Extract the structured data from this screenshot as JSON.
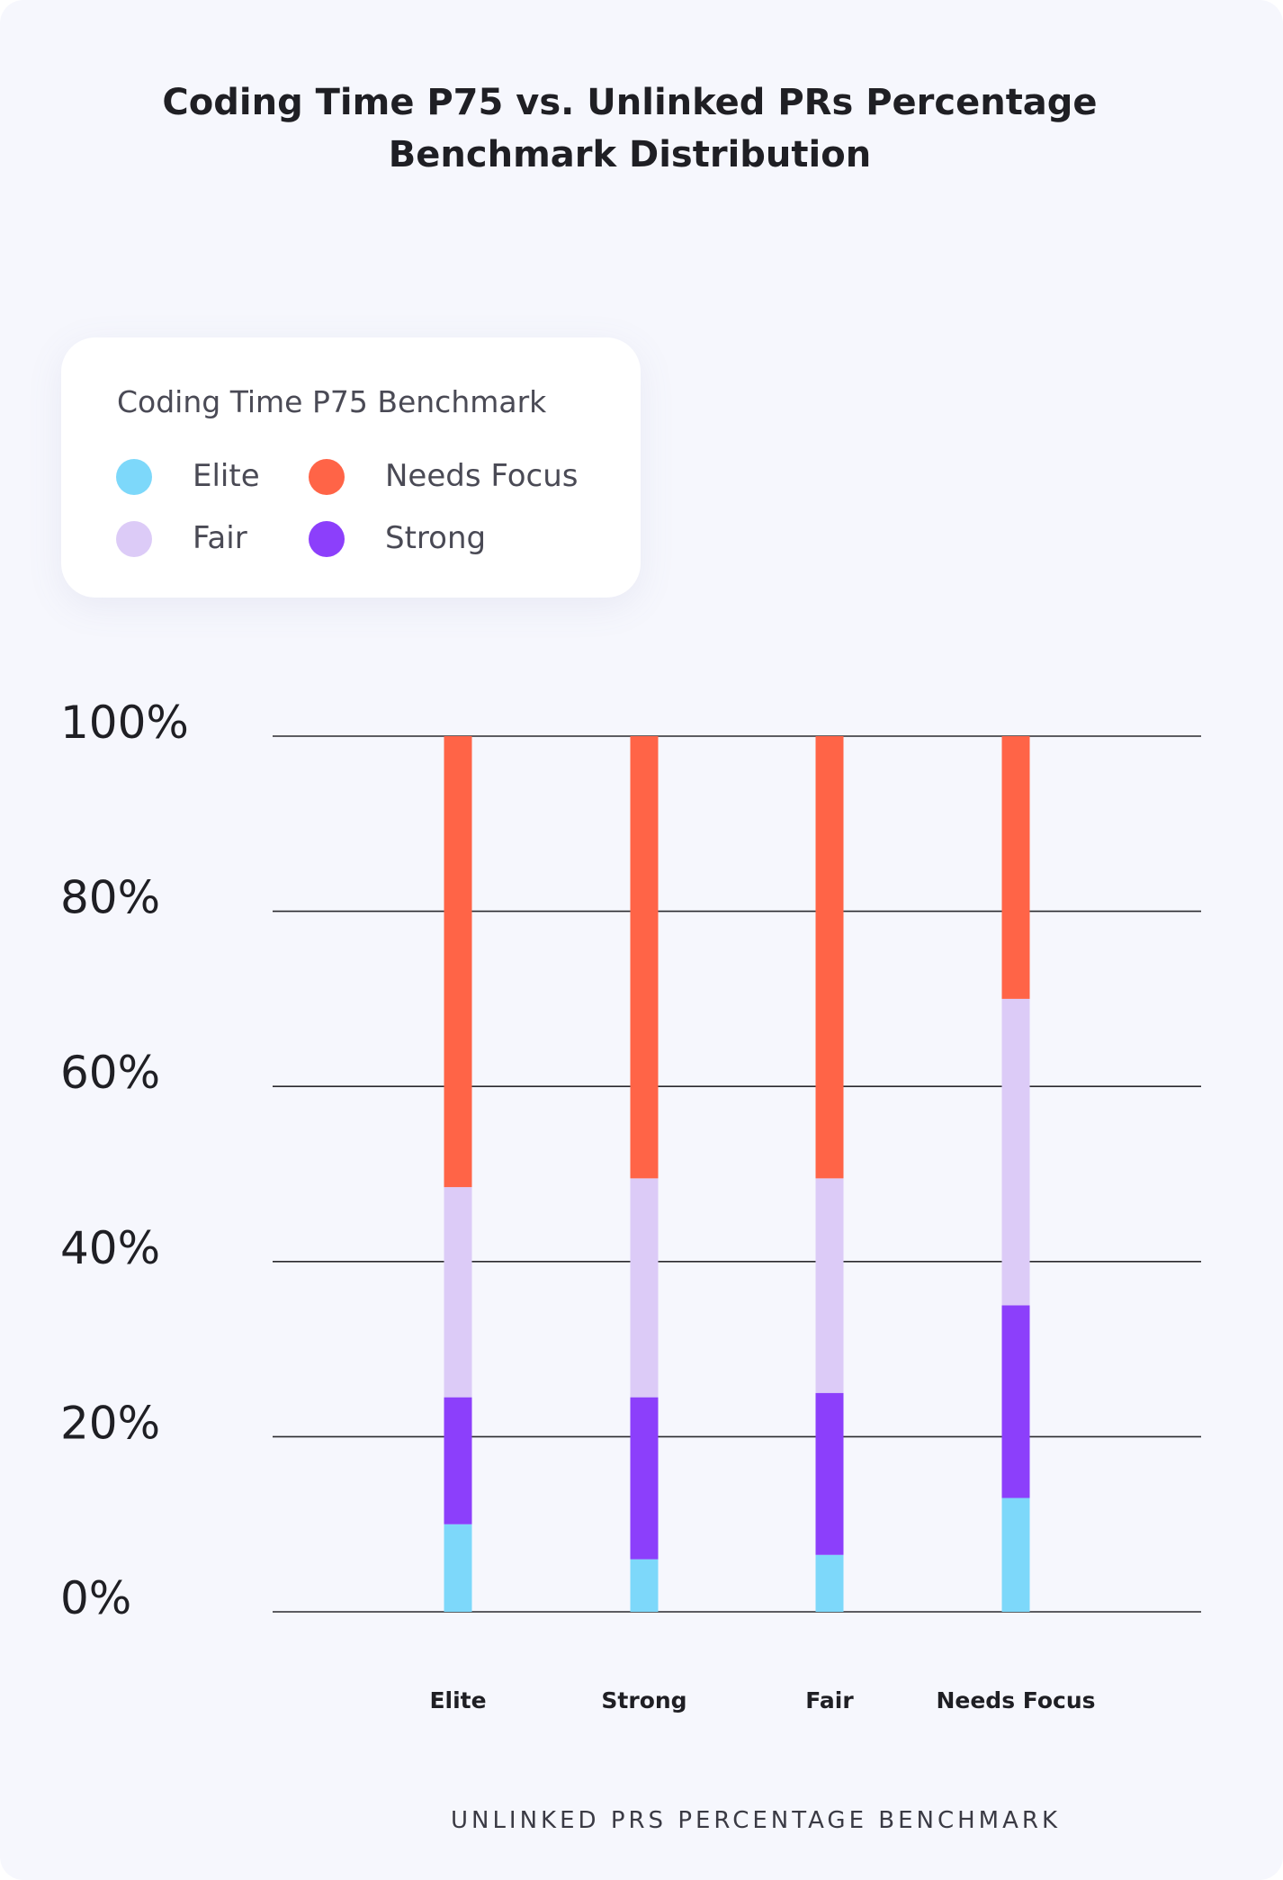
{
  "chart_data": {
    "type": "bar",
    "stacked": true,
    "title_lines": [
      "Coding Time P75 vs. Unlinked PRs Percentage",
      "Benchmark Distribution"
    ],
    "xlabel": "UNLINKED PRS PERCENTAGE BENCHMARK",
    "ylabel": "",
    "ylim": [
      0,
      100
    ],
    "y_ticks": [
      0,
      20,
      40,
      60,
      80,
      100
    ],
    "y_tick_labels": [
      "0%",
      "20%",
      "40%",
      "60%",
      "80%",
      "100%"
    ],
    "grid": true,
    "categories": [
      "Elite",
      "Strong",
      "Fair",
      "Needs Focus"
    ],
    "legend": {
      "title": "Coding Time P75 Benchmark",
      "placement": "top-left",
      "entries": [
        "Elite",
        "Needs Focus",
        "Fair",
        "Strong"
      ]
    },
    "series": [
      {
        "name": "Elite",
        "color": "#7dd8fa",
        "values": [
          10,
          6,
          6.5,
          13
        ]
      },
      {
        "name": "Strong",
        "color": "#8c3ffb",
        "values": [
          14.5,
          18.5,
          18.5,
          22
        ]
      },
      {
        "name": "Fair",
        "color": "#dccbf7",
        "values": [
          24,
          25,
          24.5,
          35
        ]
      },
      {
        "name": "Needs Focus",
        "color": "#ff6447",
        "values": [
          51.5,
          50.5,
          50.5,
          30
        ]
      }
    ]
  }
}
